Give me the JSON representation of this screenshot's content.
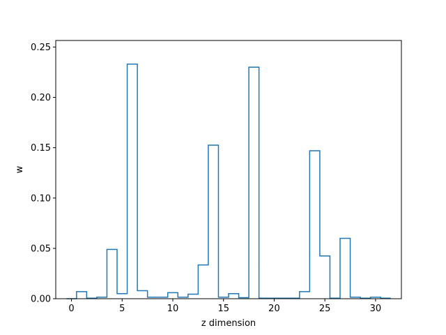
{
  "chart_data": {
    "type": "step",
    "title": "",
    "xlabel": "z dimension",
    "ylabel": "w",
    "xlim": [
      -1.55,
      32.55
    ],
    "ylim": [
      0,
      0.2565
    ],
    "xticks": [
      0,
      5,
      10,
      15,
      20,
      25,
      30
    ],
    "yticks": [
      0.0,
      0.05,
      0.1,
      0.15,
      0.2,
      0.25
    ],
    "xtick_labels": [
      "0",
      "5",
      "10",
      "15",
      "20",
      "25",
      "30"
    ],
    "ytick_labels": [
      "0.00",
      "0.05",
      "0.10",
      "0.15",
      "0.20",
      "0.25"
    ],
    "grid": false,
    "line_color": "#1f77b4",
    "values": [
      0.0,
      0.007,
      0.0005,
      0.0015,
      0.049,
      0.005,
      0.233,
      0.008,
      0.0015,
      0.0015,
      0.006,
      0.0015,
      0.0045,
      0.0335,
      0.1525,
      0.0015,
      0.005,
      0.001,
      0.23,
      0.0005,
      0.0005,
      0.0005,
      0.0005,
      0.007,
      0.147,
      0.0425,
      0.0005,
      0.06,
      0.0015,
      0.0005,
      0.0015,
      0.0005
    ]
  }
}
